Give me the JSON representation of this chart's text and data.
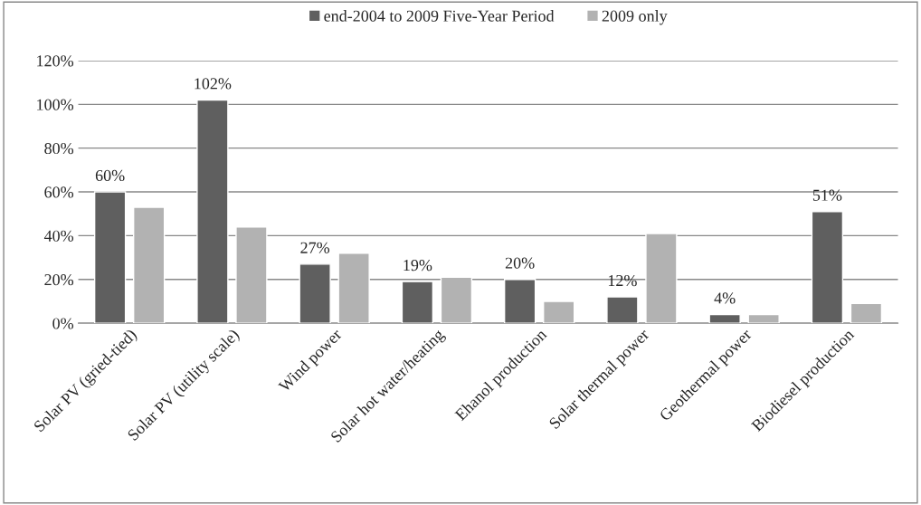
{
  "chart_data": {
    "type": "bar",
    "categories": [
      "Solar PV (gried-tied)",
      "Solar PV (utility scale)",
      "Wind power",
      "Solar hot water/heating",
      "Ehanol production",
      "Solar thermal power",
      "Geothermal power",
      "Biodiesel production"
    ],
    "series": [
      {
        "name": "end-2004 to 2009 Five-Year Period",
        "color": "#5f5f5f",
        "values": [
          60,
          102,
          27,
          19,
          20,
          12,
          4,
          51
        ],
        "value_labels": [
          "60%",
          "102%",
          "27%",
          "19%",
          "20%",
          "12%",
          "4%",
          "51%"
        ]
      },
      {
        "name": "2009 only",
        "color": "#b2b2b2",
        "values": [
          53,
          44,
          32,
          21,
          10,
          41,
          4,
          9
        ]
      }
    ],
    "ylim": [
      0,
      120
    ],
    "yticks": [
      {
        "value": 0,
        "label": "0%"
      },
      {
        "value": 20,
        "label": "20%"
      },
      {
        "value": 40,
        "label": "40%"
      },
      {
        "value": 60,
        "label": "60%"
      },
      {
        "value": 80,
        "label": "80%"
      },
      {
        "value": 100,
        "label": "100%"
      },
      {
        "value": 120,
        "label": "120%"
      }
    ],
    "grid": "y",
    "legend": "top"
  }
}
